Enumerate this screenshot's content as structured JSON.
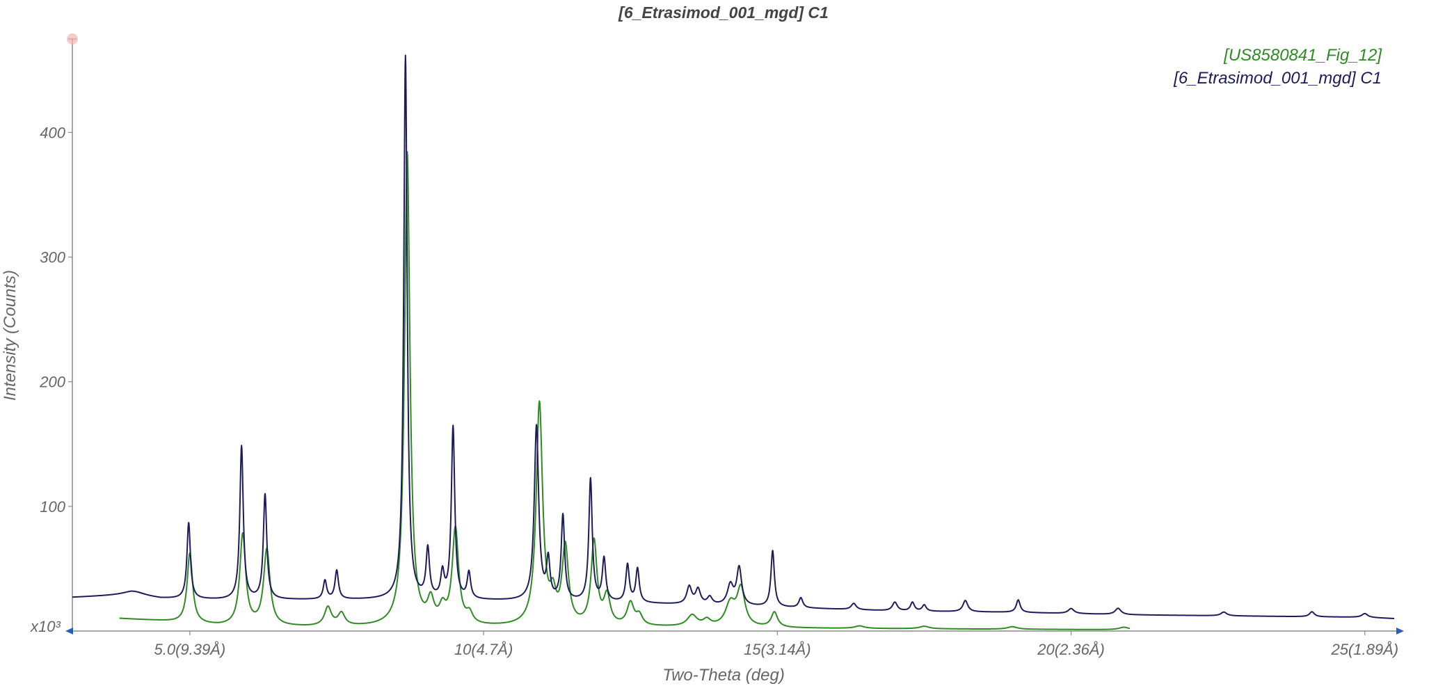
{
  "chart_data": {
    "type": "line",
    "title": "[6_Etrasimod_001_mgd] C1",
    "xlabel": "Two-Theta (deg)",
    "ylabel": "Intensity (Counts)",
    "y_multiplier_label": "x10³",
    "xlim": [
      3.0,
      25.5
    ],
    "ylim": [
      0,
      475
    ],
    "x_ticks": [
      {
        "value": 5.0,
        "label": "5.0(9.39Å)"
      },
      {
        "value": 10.0,
        "label": "10(4.7Å)"
      },
      {
        "value": 15.0,
        "label": "15(3.14Å)"
      },
      {
        "value": 20.0,
        "label": "20(2.36Å)"
      },
      {
        "value": 25.0,
        "label": "25(1.89Å)"
      }
    ],
    "y_ticks": [
      {
        "value": 100,
        "label": "100"
      },
      {
        "value": 200,
        "label": "200"
      },
      {
        "value": 300,
        "label": "300"
      },
      {
        "value": 400,
        "label": "400"
      }
    ],
    "grid": false,
    "legend_position": "top-right",
    "series": [
      {
        "name": "[US8580841_Fig_12]",
        "color": "#2e8b22",
        "x_range": [
          3.8,
          21.0
        ],
        "baseline": [
          [
            3.8,
            10
          ],
          [
            4.5,
            8
          ],
          [
            5.5,
            4
          ],
          [
            7,
            3
          ],
          [
            10,
            3
          ],
          [
            13,
            3
          ],
          [
            16,
            2
          ],
          [
            21,
            1
          ]
        ],
        "peaks": [
          {
            "x": 5.0,
            "height": 56,
            "fwhm": 0.11
          },
          {
            "x": 5.9,
            "height": 73,
            "fwhm": 0.12
          },
          {
            "x": 6.31,
            "height": 61,
            "fwhm": 0.13
          },
          {
            "x": 7.35,
            "height": 15,
            "fwhm": 0.14
          },
          {
            "x": 7.58,
            "height": 10,
            "fwhm": 0.14
          },
          {
            "x": 8.7,
            "height": 380,
            "fwhm": 0.11
          },
          {
            "x": 9.1,
            "height": 18,
            "fwhm": 0.13
          },
          {
            "x": 9.3,
            "height": 12,
            "fwhm": 0.13
          },
          {
            "x": 9.52,
            "height": 77,
            "fwhm": 0.13
          },
          {
            "x": 9.76,
            "height": 8,
            "fwhm": 0.13
          },
          {
            "x": 10.95,
            "height": 178,
            "fwhm": 0.13
          },
          {
            "x": 11.18,
            "height": 20,
            "fwhm": 0.12
          },
          {
            "x": 11.39,
            "height": 62,
            "fwhm": 0.13
          },
          {
            "x": 11.88,
            "height": 67,
            "fwhm": 0.12
          },
          {
            "x": 12.1,
            "height": 23,
            "fwhm": 0.13
          },
          {
            "x": 12.5,
            "height": 18,
            "fwhm": 0.14
          },
          {
            "x": 12.65,
            "height": 8,
            "fwhm": 0.13
          },
          {
            "x": 13.55,
            "height": 9,
            "fwhm": 0.2
          },
          {
            "x": 13.8,
            "height": 5,
            "fwhm": 0.15
          },
          {
            "x": 14.2,
            "height": 18,
            "fwhm": 0.2
          },
          {
            "x": 14.38,
            "height": 30,
            "fwhm": 0.16
          },
          {
            "x": 14.95,
            "height": 12,
            "fwhm": 0.13
          },
          {
            "x": 16.4,
            "height": 2,
            "fwhm": 0.2
          },
          {
            "x": 17.5,
            "height": 2,
            "fwhm": 0.2
          },
          {
            "x": 19.0,
            "height": 2,
            "fwhm": 0.2
          },
          {
            "x": 20.9,
            "height": 2,
            "fwhm": 0.2
          }
        ]
      },
      {
        "name": "[6_Etrasimod_001_mgd] C1",
        "color": "#1c1c5a",
        "x_range": [
          3.0,
          25.5
        ],
        "baseline": [
          [
            3.0,
            27
          ],
          [
            4.0,
            29
          ],
          [
            4.5,
            26
          ],
          [
            5.5,
            25
          ],
          [
            7.0,
            25
          ],
          [
            9.0,
            25
          ],
          [
            10.5,
            24
          ],
          [
            12.0,
            23
          ],
          [
            13.5,
            21
          ],
          [
            15.0,
            19
          ],
          [
            17.0,
            16
          ],
          [
            19.0,
            15
          ],
          [
            21.0,
            13
          ],
          [
            23.0,
            12
          ],
          [
            25.0,
            11
          ],
          [
            25.5,
            10
          ]
        ],
        "peaks": [
          {
            "x": 4.05,
            "height": 3,
            "fwhm": 0.45
          },
          {
            "x": 4.98,
            "height": 61,
            "fwhm": 0.07
          },
          {
            "x": 5.88,
            "height": 123,
            "fwhm": 0.07
          },
          {
            "x": 6.28,
            "height": 84,
            "fwhm": 0.07
          },
          {
            "x": 7.3,
            "height": 15,
            "fwhm": 0.07
          },
          {
            "x": 7.5,
            "height": 23,
            "fwhm": 0.07
          },
          {
            "x": 8.67,
            "height": 436,
            "fwhm": 0.07
          },
          {
            "x": 9.05,
            "height": 39,
            "fwhm": 0.07
          },
          {
            "x": 9.3,
            "height": 20,
            "fwhm": 0.07
          },
          {
            "x": 9.48,
            "height": 138,
            "fwhm": 0.07
          },
          {
            "x": 9.75,
            "height": 21,
            "fwhm": 0.07
          },
          {
            "x": 10.9,
            "height": 140,
            "fwhm": 0.09
          },
          {
            "x": 11.1,
            "height": 31,
            "fwhm": 0.07
          },
          {
            "x": 11.35,
            "height": 68,
            "fwhm": 0.07
          },
          {
            "x": 11.82,
            "height": 98,
            "fwhm": 0.07
          },
          {
            "x": 12.05,
            "height": 34,
            "fwhm": 0.07
          },
          {
            "x": 12.45,
            "height": 30,
            "fwhm": 0.07
          },
          {
            "x": 12.62,
            "height": 27,
            "fwhm": 0.07
          },
          {
            "x": 13.5,
            "height": 14,
            "fwhm": 0.1
          },
          {
            "x": 13.65,
            "height": 12,
            "fwhm": 0.1
          },
          {
            "x": 13.85,
            "height": 6,
            "fwhm": 0.1
          },
          {
            "x": 14.2,
            "height": 16,
            "fwhm": 0.12
          },
          {
            "x": 14.35,
            "height": 30,
            "fwhm": 0.1
          },
          {
            "x": 14.92,
            "height": 45,
            "fwhm": 0.07
          },
          {
            "x": 15.4,
            "height": 8,
            "fwhm": 0.08
          },
          {
            "x": 16.3,
            "height": 5,
            "fwhm": 0.1
          },
          {
            "x": 17.0,
            "height": 7,
            "fwhm": 0.1
          },
          {
            "x": 17.3,
            "height": 7,
            "fwhm": 0.08
          },
          {
            "x": 17.5,
            "height": 5,
            "fwhm": 0.08
          },
          {
            "x": 18.2,
            "height": 9,
            "fwhm": 0.1
          },
          {
            "x": 19.1,
            "height": 10,
            "fwhm": 0.08
          },
          {
            "x": 20.0,
            "height": 4,
            "fwhm": 0.12
          },
          {
            "x": 20.8,
            "height": 5,
            "fwhm": 0.12
          },
          {
            "x": 22.6,
            "height": 3,
            "fwhm": 0.12
          },
          {
            "x": 24.1,
            "height": 4,
            "fwhm": 0.1
          },
          {
            "x": 25.0,
            "height": 3,
            "fwhm": 0.12
          }
        ]
      }
    ]
  }
}
